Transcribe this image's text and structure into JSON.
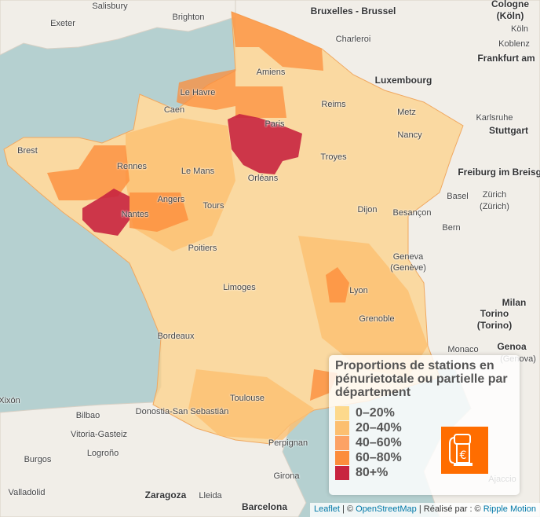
{
  "map": {
    "colors": {
      "sea": "#b5d0d0",
      "land": "#f1eee8",
      "c0_20": "#fdd98c",
      "c20_40": "#fcbf70",
      "c40_60": "#fca265",
      "c60_80": "#fc8d3c",
      "c80": "#c8243f"
    },
    "cities": [
      "Salisbury",
      "Brighton",
      "Exeter",
      "Bruxelles - Brussel",
      "Köln",
      "Charleroi",
      "Koblenz",
      "Frankfurt am",
      "Luxembourg",
      "Amiens",
      "Le Havre",
      "Caen",
      "Reims",
      "Metz",
      "Karlsruhe",
      "Stuttgart",
      "Brest",
      "Paris",
      "Nancy",
      "Rennes",
      "Le Mans",
      "Troyes",
      "Freiburg im Breisga",
      "Orléans",
      "Angers",
      "Nantes",
      "Tours",
      "Dijon",
      "Basel",
      "Zürich",
      "(Zürich)",
      "Besançon",
      "Bern",
      "Poitiers",
      "Geneva",
      "(Genève)",
      "Limoges",
      "Lyon",
      "Milan",
      "Torino",
      "(Torino)",
      "Grenoble",
      "Genoa",
      "Bordeaux",
      "Toulouse",
      "Bilbao",
      "Donostia-San Sebastián",
      "Vitoria-Gasteiz",
      "Burgos",
      "Logroño",
      "Valladolid",
      "Zaragoza",
      "Lleida",
      "Barcelona",
      "Girona",
      "Perpignan",
      "Xixón",
      "(Genova)",
      "Monaco",
      "Ajaccio",
      "Cologne",
      "(Köln)"
    ]
  },
  "legend": {
    "title": "Proportions de stations en pénurietotale ou partielle par département",
    "items": [
      {
        "label": "0–20%",
        "color": "#fdd98c"
      },
      {
        "label": "20–40%",
        "color": "#fcbf70"
      },
      {
        "label": "40–60%",
        "color": "#fca265"
      },
      {
        "label": "60–80%",
        "color": "#fc8d3c"
      },
      {
        "label": "80+%",
        "color": "#c8243f"
      }
    ],
    "icon": "fuel-pump-euro-icon"
  },
  "attribution": {
    "leaflet": "Leaflet",
    "sep1": " | © ",
    "osm": "OpenStreetMap",
    "made_by": " | Réalisé par : © ",
    "ripple": "Ripple Motion"
  }
}
